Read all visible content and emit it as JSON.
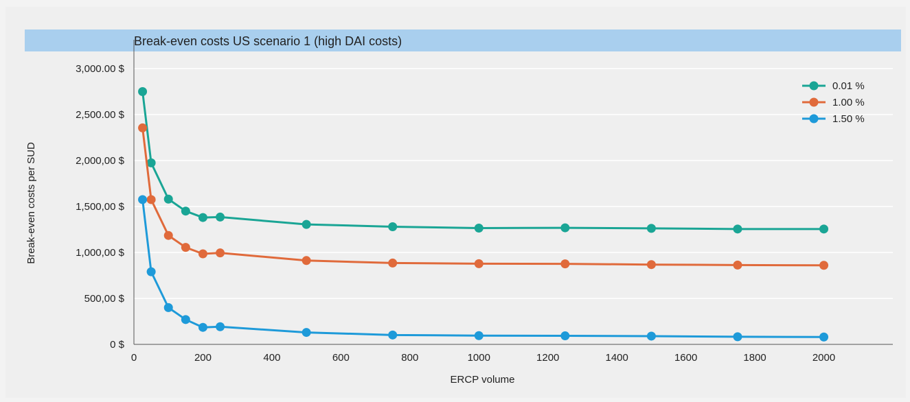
{
  "chart_data": {
    "type": "line",
    "title": "Break-even costs US scenario 1 (high DAI costs)",
    "xlabel": "ERCP volume",
    "ylabel": "Break-even costs per SUD",
    "xlim": [
      0,
      2200
    ],
    "ylim": [
      0,
      3000
    ],
    "x_ticks": [
      0,
      200,
      400,
      600,
      800,
      1000,
      1200,
      1400,
      1600,
      1800,
      2000
    ],
    "y_ticks": [
      {
        "value": 0,
        "label": "0 $"
      },
      {
        "value": 500,
        "label": "500,00 $"
      },
      {
        "value": 1000,
        "label": "1,000,00 $"
      },
      {
        "value": 1500,
        "label": "1,500,00 $"
      },
      {
        "value": 2000,
        "label": "2,000,00 $"
      },
      {
        "value": 2500,
        "label": "2,500.00 $"
      },
      {
        "value": 3000,
        "label": "3,000.00 $"
      }
    ],
    "grid": true,
    "legend_position": "top-right",
    "x": [
      25,
      50,
      100,
      150,
      200,
      250,
      500,
      750,
      1000,
      1250,
      1500,
      1750,
      2000
    ],
    "series": [
      {
        "name": "0.01 %",
        "color": "#1aa595",
        "values": [
          2750,
          1975,
          1580,
          1450,
          1380,
          1385,
          1305,
          1280,
          1265,
          1268,
          1262,
          1255,
          1255
        ]
      },
      {
        "name": "1.00 %",
        "color": "#e06a3b",
        "values": [
          2355,
          1575,
          1185,
          1055,
          985,
          995,
          912,
          885,
          878,
          876,
          868,
          863,
          860
        ]
      },
      {
        "name": "1.50 %",
        "color": "#1e9ad9",
        "values": [
          1575,
          790,
          400,
          270,
          185,
          192,
          130,
          102,
          95,
          93,
          90,
          83,
          80
        ]
      }
    ]
  }
}
